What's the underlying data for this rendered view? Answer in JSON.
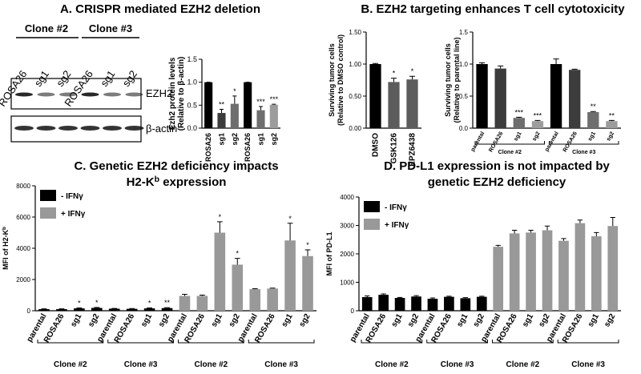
{
  "headings": [
    "A. CRISPR mediated EZH2 deletion",
    "B. EZH2 targeting enhances T cell cytotoxicity"
  ],
  "blot": {
    "groups": [
      "Clone #2",
      "Clone #3"
    ],
    "lanes": [
      "ROSA26",
      "sg1",
      "sg2",
      "ROSA26",
      "sg1",
      "sg2"
    ],
    "bands": [
      "EZH2",
      "β-actin"
    ]
  },
  "chart_data": [
    {
      "type": "bar",
      "ylabel": [
        "Ezh2 protein levels",
        "(Relative to β-actin)"
      ],
      "categories": [
        "ROSA26",
        "sg1",
        "sg2",
        "ROSA26",
        "sg1",
        "sg2"
      ],
      "values": [
        1,
        0.33,
        0.53,
        1,
        0.39,
        0.51
      ],
      "errors": [
        0,
        0.08,
        0.17,
        0,
        0.08,
        0.01
      ],
      "colors": [
        "#000000",
        "#3c3c3c",
        "#6e6e6e",
        "#000000",
        "#6e6e6e",
        "#9c9c9c"
      ],
      "annotations": [
        null,
        "**",
        "*",
        null,
        "***",
        "***"
      ],
      "ylim": [
        0,
        1.5
      ],
      "yticks": [
        {
          "value": 0,
          "label": "0.0"
        },
        {
          "value": 0.5,
          "label": "0.5"
        },
        {
          "value": 1,
          "label": "1.0"
        },
        {
          "value": 1.5,
          "label": "1.5"
        }
      ]
    },
    {
      "type": "bar",
      "ylabel": [
        "Surviving tumor cells",
        "(Relative to DMSO control)"
      ],
      "categories": [
        "DMSO",
        "GSK126",
        "EPZ6438"
      ],
      "values": [
        1.0,
        0.72,
        0.76
      ],
      "errors": [
        0.01,
        0.06,
        0.05
      ],
      "colors": [
        "#000000",
        "#5c5c5c",
        "#5c5c5c"
      ],
      "annotations": [
        null,
        "*",
        "*"
      ],
      "ylim": [
        0,
        1.5
      ],
      "yticks": [
        {
          "value": 0,
          "label": "0.00"
        },
        {
          "value": 0.5,
          "label": "0.50"
        },
        {
          "value": 1,
          "label": "1.00"
        },
        {
          "value": 1.5,
          "label": "1.50"
        }
      ]
    },
    {
      "type": "bar",
      "ylabel": [
        "Surviving tumor cells",
        "(Relative to parental line)"
      ],
      "categories": [
        "parental",
        "ROSA26",
        "sg1",
        "sg2",
        "parental",
        "ROSA26",
        "sg1",
        "sg2"
      ],
      "values": [
        1.0,
        0.93,
        0.16,
        0.11,
        1.0,
        0.91,
        0.25,
        0.11
      ],
      "errors": [
        0.02,
        0.04,
        0.01,
        0.01,
        0.08,
        0.01,
        0.01,
        0.01
      ],
      "colors": [
        "#000000",
        "#3c3c3c",
        "#6e6e6e",
        "#9c9c9c",
        "#000000",
        "#3c3c3c",
        "#6e6e6e",
        "#9c9c9c"
      ],
      "annotations": [
        null,
        null,
        "***",
        "***",
        null,
        null,
        "**",
        "**"
      ],
      "groups": [
        "Clone #2",
        "Clone #3"
      ],
      "ylim": [
        0,
        1.5
      ],
      "yticks": [
        {
          "value": 0,
          "label": "0.0"
        },
        {
          "value": 0.5,
          "label": "0.5"
        },
        {
          "value": 1,
          "label": "1.0"
        },
        {
          "value": 1.5,
          "label": "1.5"
        }
      ]
    },
    {
      "type": "bar",
      "title": [
        "C. Genetic EZH2 deficiency impacts",
        [
          "H2-K",
          "b",
          " expression"
        ]
      ],
      "ylabel": [
        [
          "MFI of H2-K",
          "b"
        ]
      ],
      "categories": [
        "parental",
        "ROSA26",
        "sg1",
        "sg2",
        "parental",
        "ROSA26",
        "sg1",
        "sg2",
        "parental",
        "ROSA26",
        "sg1",
        "sg2",
        "parental",
        "ROSA26",
        "sg1",
        "sg2"
      ],
      "series": [
        {
          "name": "- IFNγ",
          "color": "#000000",
          "values": [
            100,
            100,
            150,
            180,
            130,
            120,
            150,
            170,
            null,
            null,
            null,
            null,
            null,
            null,
            null,
            null
          ],
          "errors": [
            20,
            20,
            30,
            30,
            20,
            20,
            30,
            30,
            null,
            null,
            null,
            null,
            null,
            null,
            null,
            null
          ]
        },
        {
          "name": "+ IFNγ",
          "color": "#999999",
          "values": [
            null,
            null,
            null,
            null,
            null,
            null,
            null,
            null,
            950,
            950,
            5000,
            2950,
            1380,
            1420,
            4500,
            3500
          ],
          "errors": [
            null,
            null,
            null,
            null,
            null,
            null,
            null,
            null,
            100,
            50,
            700,
            400,
            30,
            30,
            1100,
            400
          ]
        }
      ],
      "annotations": [
        null,
        null,
        "*",
        "*",
        null,
        null,
        "*",
        "**",
        null,
        null,
        "*",
        "*",
        null,
        null,
        "*",
        "*"
      ],
      "groups": [
        "Clone #2",
        "Clone #3",
        "Clone #2",
        "Clone #3"
      ],
      "legend": "upper left",
      "ylim": [
        0,
        8000
      ],
      "yticks": [
        0,
        2000,
        4000,
        6000,
        8000
      ]
    },
    {
      "type": "bar",
      "title": [
        "D. PD-L1 expression is not impacted by",
        "genetic EZH2 deficiency"
      ],
      "ylabel": [
        "MFI of PD-L1"
      ],
      "categories": [
        "parental",
        "ROSA26",
        "sg1",
        "sg2",
        "parental",
        "ROSA26",
        "sg1",
        "sg2",
        "parental",
        "ROSA26",
        "sg1",
        "sg2",
        "parental",
        "ROSA26",
        "sg1",
        "sg2"
      ],
      "series": [
        {
          "name": "- IFNγ",
          "color": "#000000",
          "values": [
            480,
            560,
            450,
            500,
            420,
            490,
            440,
            490,
            null,
            null,
            null,
            null,
            null,
            null,
            null,
            null
          ],
          "errors": [
            40,
            30,
            20,
            30,
            30,
            20,
            20,
            20,
            null,
            null,
            null,
            null,
            null,
            null,
            null,
            null
          ]
        },
        {
          "name": "+ IFNγ",
          "color": "#999999",
          "values": [
            null,
            null,
            null,
            null,
            null,
            null,
            null,
            null,
            2250,
            2720,
            2750,
            2830,
            2460,
            3080,
            2620,
            2980
          ],
          "errors": [
            null,
            null,
            null,
            null,
            null,
            null,
            null,
            null,
            50,
            110,
            80,
            150,
            80,
            110,
            130,
            300
          ]
        }
      ],
      "groups": [
        "Clone #2",
        "Clone #3",
        "Clone #2",
        "Clone #3"
      ],
      "legend": "upper left",
      "ylim": [
        0,
        4000
      ],
      "yticks": [
        0,
        1000,
        2000,
        3000,
        4000
      ]
    }
  ]
}
